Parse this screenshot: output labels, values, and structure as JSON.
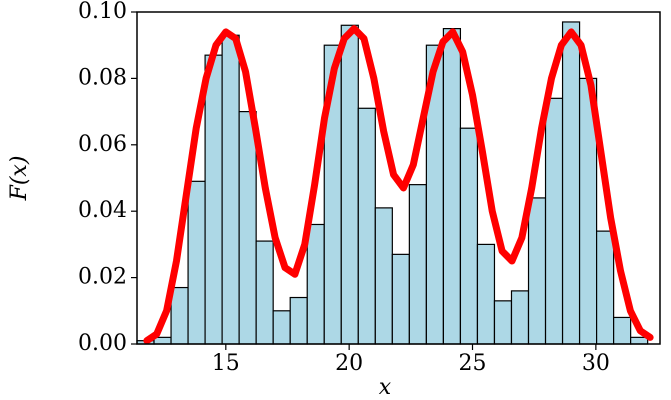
{
  "chart_data": {
    "type": "histogram",
    "xlabel": "x",
    "ylabel": "F(x)",
    "bins": [
      11.4,
      12.09,
      12.78,
      13.47,
      14.16,
      14.85,
      15.54,
      16.23,
      16.92,
      17.61,
      18.3,
      18.99,
      19.68,
      20.37,
      21.06,
      21.75,
      22.44,
      23.13,
      23.82,
      24.51,
      25.2,
      25.89,
      26.58,
      27.27,
      27.96,
      28.65,
      29.34,
      30.03,
      30.72,
      31.41,
      32.1
    ],
    "counts": [
      0.001,
      0.002,
      0.017,
      0.049,
      0.087,
      0.093,
      0.07,
      0.031,
      0.01,
      0.014,
      0.036,
      0.09,
      0.096,
      0.071,
      0.041,
      0.027,
      0.048,
      0.09,
      0.095,
      0.065,
      0.03,
      0.013,
      0.016,
      0.044,
      0.074,
      0.097,
      0.08,
      0.034,
      0.008,
      0.002
    ],
    "color": "#add8e6",
    "edgecolor": "#000000",
    "series": [
      {
        "color": "#ff0000",
        "x": [
          11.8,
          12.2,
          12.6,
          13.0,
          13.4,
          13.8,
          14.2,
          14.6,
          15.0,
          15.4,
          15.8,
          16.2,
          16.6,
          17.0,
          17.4,
          17.8,
          18.2,
          18.6,
          19.0,
          19.4,
          19.8,
          20.2,
          20.6,
          21.0,
          21.4,
          21.8,
          22.2,
          22.6,
          23.0,
          23.4,
          23.8,
          24.2,
          24.6,
          25.0,
          25.4,
          25.8,
          26.2,
          26.6,
          27.0,
          27.4,
          27.8,
          28.2,
          28.6,
          29.0,
          29.4,
          29.8,
          30.2,
          30.6,
          31.0,
          31.4,
          31.8,
          32.2
        ],
        "values": [
          0.001,
          0.003,
          0.01,
          0.025,
          0.045,
          0.065,
          0.08,
          0.09,
          0.094,
          0.092,
          0.082,
          0.065,
          0.047,
          0.032,
          0.023,
          0.021,
          0.03,
          0.048,
          0.068,
          0.083,
          0.092,
          0.095,
          0.092,
          0.08,
          0.064,
          0.051,
          0.047,
          0.054,
          0.068,
          0.082,
          0.091,
          0.094,
          0.088,
          0.075,
          0.058,
          0.04,
          0.028,
          0.025,
          0.032,
          0.047,
          0.065,
          0.08,
          0.09,
          0.094,
          0.09,
          0.078,
          0.058,
          0.038,
          0.022,
          0.01,
          0.004,
          0.002
        ]
      }
    ],
    "xlim": [
      11.4,
      32.6
    ],
    "ylim": [
      0,
      0.1
    ],
    "xticks": [
      15,
      20,
      25,
      30
    ],
    "yticks": [
      {
        "value": 0,
        "label": "0.00"
      },
      {
        "value": 0.02,
        "label": "0.02"
      },
      {
        "value": 0.04,
        "label": "0.04"
      },
      {
        "value": 0.06,
        "label": "0.06"
      },
      {
        "value": 0.08,
        "label": "0.08"
      },
      {
        "value": 0.1,
        "label": "0.10"
      }
    ]
  }
}
